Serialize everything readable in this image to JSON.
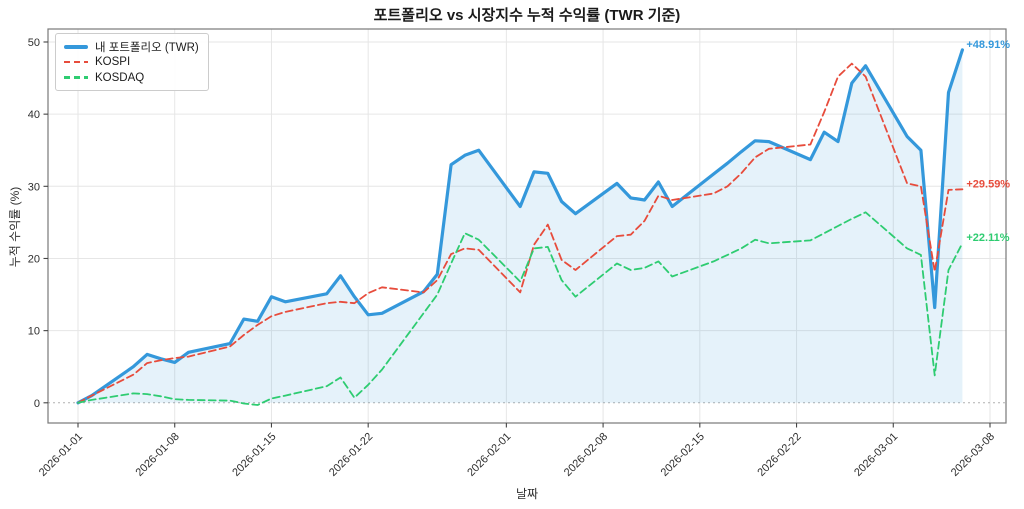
{
  "chart_data": {
    "type": "line",
    "title": "포트폴리오 vs 시장지수 누적 수익률 (TWR 기준)",
    "xlabel": "날짜",
    "ylabel": "누적 수익률 (%)",
    "grid": true,
    "legend_position": "upper left",
    "ylim": [
      -2.8,
      51.8
    ],
    "y_ticks": [
      0,
      10,
      20,
      30,
      40,
      50
    ],
    "x_tick_labels": [
      "2026-01-01",
      "2026-01-08",
      "2026-01-15",
      "2026-01-22",
      "2026-02-01",
      "2026-02-08",
      "2026-02-15",
      "2026-02-22",
      "2026-03-01",
      "2026-03-08"
    ],
    "dates": [
      "2026-01-01",
      "2026-01-02",
      "2026-01-05",
      "2026-01-06",
      "2026-01-07",
      "2026-01-08",
      "2026-01-09",
      "2026-01-12",
      "2026-01-13",
      "2026-01-14",
      "2026-01-15",
      "2026-01-16",
      "2026-01-19",
      "2026-01-20",
      "2026-01-21",
      "2026-01-22",
      "2026-01-23",
      "2026-01-26",
      "2026-01-27",
      "2026-01-28",
      "2026-01-29",
      "2026-01-30",
      "2026-02-02",
      "2026-02-03",
      "2026-02-04",
      "2026-02-05",
      "2026-02-06",
      "2026-02-09",
      "2026-02-10",
      "2026-02-11",
      "2026-02-12",
      "2026-02-13",
      "2026-02-16",
      "2026-02-17",
      "2026-02-18",
      "2026-02-19",
      "2026-02-20",
      "2026-02-23",
      "2026-02-24",
      "2026-02-25",
      "2026-02-26",
      "2026-02-27",
      "2026-03-02",
      "2026-03-03",
      "2026-03-04",
      "2026-03-05",
      "2026-03-06"
    ],
    "series": [
      {
        "key": "portfolio",
        "name": "내 포트폴리오 (TWR)",
        "color": "#3498db",
        "style": "solid",
        "width": 3.2,
        "fill": true,
        "fill_color": "rgba(52,152,219,0.13)",
        "end_label": "+48.91%",
        "values": [
          0,
          1.0,
          5.0,
          6.7,
          6.1,
          5.6,
          7.0,
          8.2,
          11.6,
          11.3,
          14.7,
          14.0,
          15.1,
          17.6,
          14.7,
          12.2,
          12.4,
          15.4,
          17.8,
          33.0,
          34.3,
          35.0,
          27.2,
          32.0,
          31.8,
          27.9,
          26.2,
          30.4,
          28.4,
          28.1,
          30.6,
          27.2,
          31.7,
          33.2,
          34.8,
          36.3,
          36.2,
          33.7,
          37.5,
          36.2,
          44.3,
          46.7,
          36.9,
          35.0,
          13.2,
          43.0,
          48.91
        ]
      },
      {
        "key": "kospi",
        "name": "KOSPI",
        "color": "#e74c3c",
        "style": "dashed",
        "width": 1.8,
        "fill": false,
        "end_label": "+29.59%",
        "values": [
          0,
          1.0,
          3.9,
          5.5,
          5.9,
          6.2,
          6.4,
          7.8,
          9.4,
          10.8,
          12.0,
          12.6,
          13.8,
          14.0,
          13.8,
          15.2,
          16.0,
          15.3,
          17.0,
          20.6,
          21.4,
          21.2,
          15.3,
          21.9,
          24.7,
          19.8,
          18.4,
          23.1,
          23.3,
          25.2,
          28.7,
          28.1,
          29.0,
          30.0,
          31.8,
          34.0,
          35.2,
          35.8,
          40.3,
          45.2,
          47.0,
          45.2,
          30.4,
          30.0,
          18.2,
          29.5,
          29.59
        ]
      },
      {
        "key": "kosdaq",
        "name": "KOSDAQ",
        "color": "#2ecc71",
        "style": "dashed",
        "width": 1.8,
        "fill": false,
        "end_label": "+22.11%",
        "values": [
          0,
          0.4,
          1.3,
          1.2,
          0.9,
          0.5,
          0.4,
          0.3,
          -0.1,
          -0.3,
          0.6,
          1.0,
          2.3,
          3.5,
          0.7,
          2.5,
          4.6,
          12.4,
          15.0,
          19.3,
          23.5,
          22.6,
          16.8,
          21.4,
          21.6,
          17.0,
          14.7,
          19.3,
          18.4,
          18.7,
          19.6,
          17.5,
          19.6,
          20.5,
          21.4,
          22.6,
          22.1,
          22.5,
          23.5,
          24.5,
          25.5,
          26.4,
          21.4,
          20.5,
          3.8,
          18.4,
          22.11
        ]
      }
    ]
  }
}
